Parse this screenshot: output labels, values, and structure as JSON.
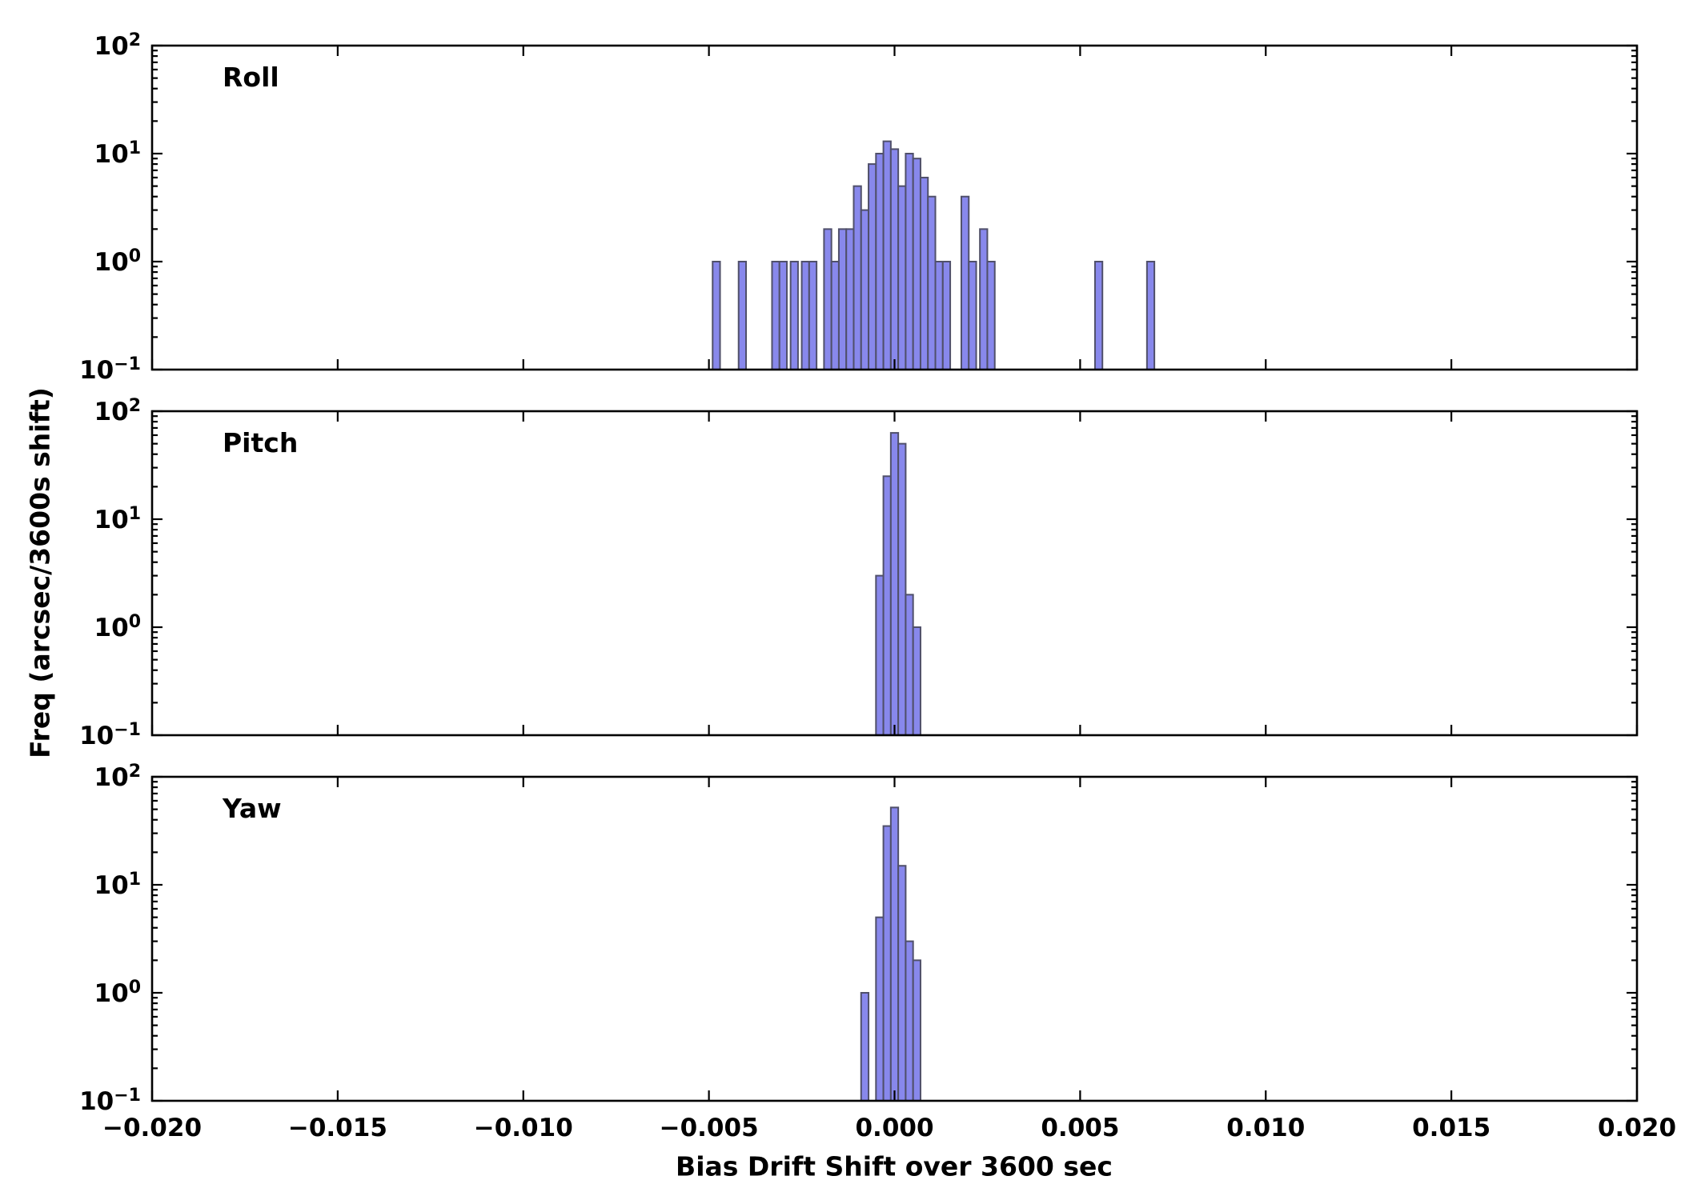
{
  "figure": {
    "xlabel": "Bias Drift Shift over 3600 sec",
    "ylabel": "Freq (arcsec/3600s shift)",
    "colors": {
      "background": "#ffffff",
      "bar_fill": "#8888ec",
      "bar_edge": "#50506a",
      "axis": "#000000"
    }
  },
  "chart_data": [
    {
      "type": "bar",
      "title": "Roll",
      "xlabel": "Bias Drift Shift over 3600 sec",
      "ylabel": "Freq (arcsec/3600s shift)",
      "x_range": [
        -0.02,
        0.02
      ],
      "y_log_range": [
        0.1,
        100
      ],
      "y_scale": "log",
      "grid": false,
      "xticks": [
        -0.02,
        -0.015,
        -0.01,
        -0.005,
        0.0,
        0.005,
        0.01,
        0.015,
        0.02
      ],
      "xtick_labels": [
        "−0.020",
        "−0.015",
        "−0.010",
        "−0.005",
        "0.000",
        "0.005",
        "0.010",
        "0.015",
        "0.020"
      ],
      "ytick_exponents": [
        -1,
        0,
        1,
        2
      ],
      "bin_width": 0.0002,
      "bins": [
        [
          -0.0048,
          1
        ],
        [
          -0.0041,
          1
        ],
        [
          -0.0032,
          1
        ],
        [
          -0.003,
          1
        ],
        [
          -0.0027,
          1
        ],
        [
          -0.0024,
          1
        ],
        [
          -0.0022,
          1
        ],
        [
          -0.0018,
          2
        ],
        [
          -0.0016,
          1
        ],
        [
          -0.0014,
          2
        ],
        [
          -0.0012,
          2
        ],
        [
          -0.001,
          5
        ],
        [
          -0.0008,
          3
        ],
        [
          -0.0006,
          8
        ],
        [
          -0.0004,
          10
        ],
        [
          -0.0002,
          13
        ],
        [
          0.0,
          11
        ],
        [
          0.0002,
          5
        ],
        [
          0.0004,
          10
        ],
        [
          0.0006,
          9
        ],
        [
          0.0008,
          6
        ],
        [
          0.001,
          4
        ],
        [
          0.0012,
          1
        ],
        [
          0.0014,
          1
        ],
        [
          0.0019,
          4
        ],
        [
          0.0021,
          1
        ],
        [
          0.0024,
          2
        ],
        [
          0.0026,
          1
        ],
        [
          0.0055,
          1
        ],
        [
          0.0069,
          1
        ]
      ]
    },
    {
      "type": "bar",
      "title": "Pitch",
      "xlabel": "Bias Drift Shift over 3600 sec",
      "ylabel": "Freq (arcsec/3600s shift)",
      "x_range": [
        -0.02,
        0.02
      ],
      "y_log_range": [
        0.1,
        100
      ],
      "y_scale": "log",
      "grid": false,
      "xticks": [
        -0.02,
        -0.015,
        -0.01,
        -0.005,
        0.0,
        0.005,
        0.01,
        0.015,
        0.02
      ],
      "xtick_labels": [
        "−0.020",
        "−0.015",
        "−0.010",
        "−0.005",
        "0.000",
        "0.005",
        "0.010",
        "0.015",
        "0.020"
      ],
      "ytick_exponents": [
        -1,
        0,
        1,
        2
      ],
      "bin_width": 0.0002,
      "bins": [
        [
          -0.0004,
          3
        ],
        [
          -0.0002,
          25
        ],
        [
          0.0,
          63
        ],
        [
          0.0002,
          50
        ],
        [
          0.0004,
          2
        ],
        [
          0.0006,
          1
        ]
      ]
    },
    {
      "type": "bar",
      "title": "Yaw",
      "xlabel": "Bias Drift Shift over 3600 sec",
      "ylabel": "Freq (arcsec/3600s shift)",
      "x_range": [
        -0.02,
        0.02
      ],
      "y_log_range": [
        0.1,
        100
      ],
      "y_scale": "log",
      "grid": false,
      "xticks": [
        -0.02,
        -0.015,
        -0.01,
        -0.005,
        0.0,
        0.005,
        0.01,
        0.015,
        0.02
      ],
      "xtick_labels": [
        "−0.020",
        "−0.015",
        "−0.010",
        "−0.005",
        "0.000",
        "0.005",
        "0.010",
        "0.015",
        "0.020"
      ],
      "ytick_exponents": [
        -1,
        0,
        1,
        2
      ],
      "bin_width": 0.0002,
      "bins": [
        [
          -0.0008,
          1
        ],
        [
          -0.0004,
          5
        ],
        [
          -0.0002,
          35
        ],
        [
          0.0,
          52
        ],
        [
          0.0002,
          15
        ],
        [
          0.0004,
          3
        ],
        [
          0.0006,
          2
        ]
      ]
    }
  ]
}
